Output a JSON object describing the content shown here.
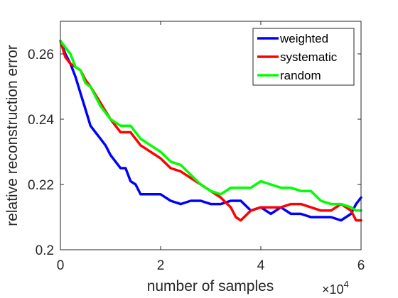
{
  "chart_data": {
    "type": "line",
    "title": "",
    "xlabel": "number of samples",
    "ylabel": "relative reconstruction error",
    "x_multiplier": {
      "base": "×10",
      "exponent": "4"
    },
    "xlim": [
      0,
      6
    ],
    "ylim": [
      0.2,
      0.27
    ],
    "x_ticks": [
      0,
      2,
      4,
      6
    ],
    "x_tick_labels": [
      "0",
      "2",
      "4",
      "6"
    ],
    "y_ticks": [
      0.2,
      0.22,
      0.24,
      0.26
    ],
    "y_tick_labels": [
      "0.2",
      "0.22",
      "0.24",
      "0.26"
    ],
    "grid": false,
    "legend_position": "top-right",
    "series": [
      {
        "name": "weighted",
        "color": "#0000ff",
        "x": [
          0.0,
          0.1,
          0.2,
          0.3,
          0.4,
          0.5,
          0.6,
          0.7,
          0.8,
          0.9,
          1.0,
          1.1,
          1.2,
          1.3,
          1.4,
          1.5,
          1.6,
          1.8,
          2.0,
          2.2,
          2.4,
          2.6,
          2.8,
          3.0,
          3.2,
          3.4,
          3.6,
          3.8,
          4.0,
          4.2,
          4.4,
          4.6,
          4.8,
          5.0,
          5.2,
          5.4,
          5.6,
          5.8,
          5.9,
          6.0
        ],
        "y": [
          0.264,
          0.26,
          0.257,
          0.253,
          0.248,
          0.243,
          0.238,
          0.236,
          0.234,
          0.232,
          0.229,
          0.227,
          0.225,
          0.225,
          0.221,
          0.22,
          0.217,
          0.217,
          0.217,
          0.215,
          0.214,
          0.215,
          0.215,
          0.214,
          0.214,
          0.215,
          0.215,
          0.212,
          0.213,
          0.211,
          0.213,
          0.211,
          0.211,
          0.21,
          0.21,
          0.21,
          0.209,
          0.211,
          0.214,
          0.216
        ]
      },
      {
        "name": "systematic",
        "color": "#ff0000",
        "x": [
          0.0,
          0.1,
          0.2,
          0.3,
          0.4,
          0.5,
          0.6,
          0.8,
          1.0,
          1.2,
          1.4,
          1.6,
          1.8,
          2.0,
          2.2,
          2.4,
          2.6,
          2.8,
          3.0,
          3.2,
          3.4,
          3.5,
          3.6,
          3.8,
          4.0,
          4.2,
          4.4,
          4.6,
          4.8,
          5.0,
          5.2,
          5.4,
          5.6,
          5.8,
          5.9,
          6.0
        ],
        "y": [
          0.264,
          0.259,
          0.257,
          0.256,
          0.255,
          0.252,
          0.25,
          0.245,
          0.24,
          0.236,
          0.236,
          0.232,
          0.23,
          0.228,
          0.225,
          0.224,
          0.222,
          0.22,
          0.218,
          0.216,
          0.213,
          0.21,
          0.209,
          0.212,
          0.213,
          0.213,
          0.213,
          0.214,
          0.214,
          0.213,
          0.212,
          0.212,
          0.214,
          0.212,
          0.209,
          0.209
        ]
      },
      {
        "name": "random",
        "color": "#00ff00",
        "x": [
          0.0,
          0.1,
          0.2,
          0.3,
          0.4,
          0.5,
          0.6,
          0.8,
          1.0,
          1.2,
          1.4,
          1.6,
          1.8,
          2.0,
          2.2,
          2.4,
          2.6,
          2.8,
          3.0,
          3.2,
          3.4,
          3.6,
          3.8,
          4.0,
          4.2,
          4.4,
          4.6,
          4.8,
          5.0,
          5.2,
          5.4,
          5.6,
          5.8,
          5.9,
          6.0
        ],
        "y": [
          0.264,
          0.262,
          0.26,
          0.256,
          0.255,
          0.251,
          0.25,
          0.244,
          0.24,
          0.238,
          0.238,
          0.234,
          0.232,
          0.23,
          0.227,
          0.226,
          0.223,
          0.22,
          0.218,
          0.217,
          0.219,
          0.219,
          0.219,
          0.221,
          0.22,
          0.219,
          0.219,
          0.218,
          0.218,
          0.215,
          0.214,
          0.214,
          0.213,
          0.212,
          0.212
        ]
      }
    ]
  }
}
